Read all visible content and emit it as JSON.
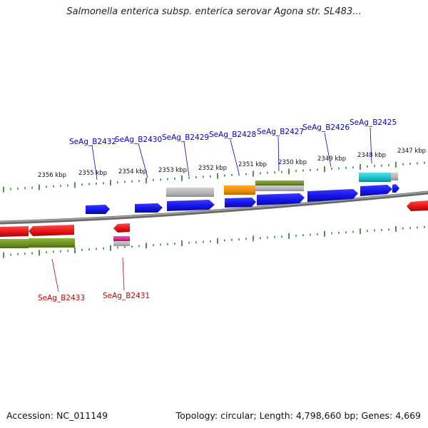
{
  "title": "Salmonella enterica subsp. enterica serovar Agona str. SL483...",
  "footer": {
    "accession": "Accession: NC_011149",
    "topology": "Topology: circular; Length: 4,798,660 bp; Genes: 4,669"
  },
  "colors": {
    "forward_cds": "#1414e8",
    "reverse_cds": "#e81414",
    "forward_label": "#0000cc",
    "reverse_label": "#cc0000",
    "tick": "#1f7a1f",
    "backbone": "#888888",
    "olive": "#6b8f23",
    "orange": "#f08c00",
    "cyan": "#19c0c8",
    "gray": "#b4b4b4",
    "magenta": "#e0209a"
  },
  "axis": {
    "unit": "kbp",
    "tick_labels": [
      "2356 kbp",
      "2355 kbp",
      "2354 kbp",
      "2353 kbp",
      "2352 kbp",
      "2351 kbp",
      "2350 kbp",
      "2349 kbp",
      "2348 kbp",
      "2347 kbp"
    ]
  },
  "gene_labels": {
    "forward": [
      "SeAg_B2432",
      "SeAg_B2430",
      "SeAg_B2429",
      "SeAg_B2428",
      "SeAg_B2427",
      "SeAg_B2426",
      "SeAg_B2425"
    ],
    "reverse": [
      "SeAg_B2433",
      "SeAg_B2431"
    ]
  }
}
